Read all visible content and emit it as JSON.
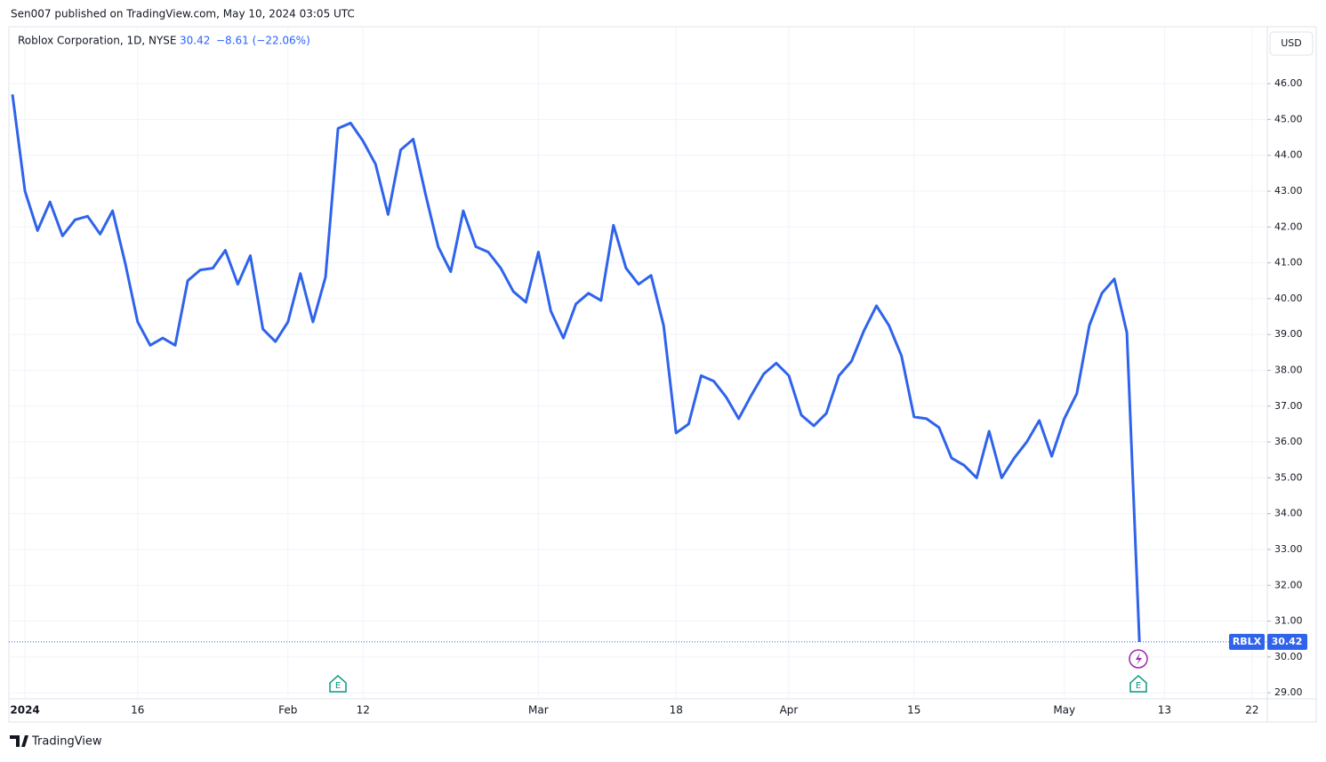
{
  "header": "Sen007 published on TradingView.com, May 10, 2024 03:05 UTC",
  "footer_logo": "TradingView",
  "chart_data": {
    "type": "line",
    "title": "Roblox Corporation, 1D, NYSE",
    "change": "−8.61 (−22.06%)",
    "currency": "USD",
    "symbol_label": "RBLX",
    "earnings_marker": "E",
    "categories": [
      null,
      "2024",
      null,
      null,
      null,
      null,
      null,
      null,
      null,
      null,
      "16",
      null,
      null,
      null,
      null,
      null,
      null,
      null,
      null,
      null,
      null,
      null,
      "Feb",
      null,
      null,
      null,
      null,
      null,
      "12",
      null,
      null,
      null,
      null,
      null,
      null,
      null,
      null,
      null,
      null,
      null,
      null,
      null,
      "Mar",
      null,
      null,
      null,
      null,
      null,
      null,
      null,
      null,
      null,
      null,
      "18",
      null,
      null,
      null,
      null,
      null,
      null,
      null,
      null,
      "Apr",
      null,
      null,
      null,
      null,
      null,
      null,
      null,
      null,
      null,
      "15",
      null,
      null,
      null,
      null,
      null,
      null,
      null,
      null,
      null,
      null,
      null,
      "May",
      null,
      null,
      null,
      null,
      null,
      null,
      null,
      "13",
      null,
      null,
      null,
      null,
      null,
      null,
      "22"
    ],
    "series": [
      {
        "name": "RBLX",
        "color": "#2f63eb",
        "values": [
          45.7,
          43.0,
          41.9,
          42.7,
          41.75,
          42.2,
          42.3,
          41.8,
          42.45,
          41.0,
          39.35,
          38.7,
          38.9,
          38.7,
          40.5,
          40.8,
          40.85,
          41.35,
          40.4,
          41.2,
          39.15,
          38.8,
          39.35,
          40.7,
          39.35,
          40.6,
          44.75,
          44.9,
          44.4,
          43.75,
          42.35,
          44.15,
          44.45,
          42.9,
          41.45,
          40.75,
          42.45,
          41.45,
          41.3,
          40.85,
          40.2,
          39.9,
          41.3,
          39.65,
          38.9,
          39.85,
          40.15,
          39.95,
          42.05,
          40.85,
          40.4,
          40.65,
          39.25,
          36.25,
          36.5,
          37.85,
          37.7,
          37.25,
          36.65,
          37.3,
          37.9,
          38.2,
          37.85,
          36.75,
          36.45,
          36.8,
          37.85,
          38.25,
          39.1,
          39.8,
          39.25,
          38.4,
          36.7,
          36.65,
          36.4,
          35.55,
          35.35,
          35.0,
          36.3,
          35.0,
          35.55,
          36.0,
          36.6,
          35.6,
          36.65,
          37.35,
          39.25,
          40.15,
          40.55,
          39.05,
          30.42,
          null,
          null,
          null,
          null,
          null,
          null,
          null,
          null,
          null
        ]
      }
    ],
    "ylim": [
      28.83,
      47.59
    ],
    "yticks": [
      {
        "value": 29,
        "label": "29.00"
      },
      {
        "value": 30,
        "label": "30.00"
      },
      {
        "value": 31,
        "label": "31.00"
      },
      {
        "value": 32,
        "label": "32.00"
      },
      {
        "value": 33,
        "label": "33.00"
      },
      {
        "value": 34,
        "label": "34.00"
      },
      {
        "value": 35,
        "label": "35.00"
      },
      {
        "value": 36,
        "label": "36.00"
      },
      {
        "value": 37,
        "label": "37.00"
      },
      {
        "value": 38,
        "label": "38.00"
      },
      {
        "value": 39,
        "label": "39.00"
      },
      {
        "value": 40,
        "label": "40.00"
      },
      {
        "value": 41,
        "label": "41.00"
      },
      {
        "value": 42,
        "label": "42.00"
      },
      {
        "value": 43,
        "label": "43.00"
      },
      {
        "value": 44,
        "label": "44.00"
      },
      {
        "value": 45,
        "label": "45.00"
      },
      {
        "value": 46,
        "label": "46.00"
      }
    ],
    "grid": true
  }
}
